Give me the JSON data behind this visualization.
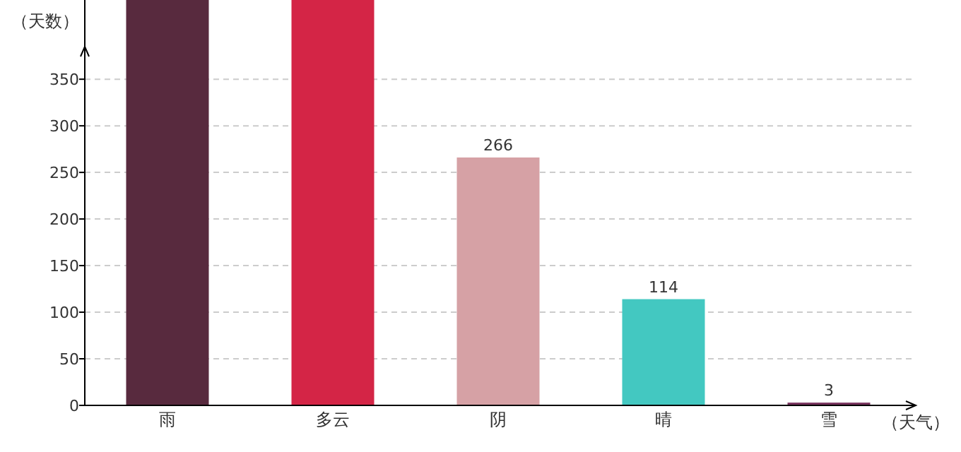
{
  "chart_data": {
    "type": "bar",
    "ylabel": "（天数）",
    "xlabel": "（天气）",
    "categories": [
      "雨",
      "多云",
      "阴",
      "晴",
      "雪"
    ],
    "values": [
      435,
      435,
      266,
      114,
      3
    ],
    "colors": [
      "#582a3e",
      "#d42546",
      "#d6a1a5",
      "#43c8c1",
      "#7a3660"
    ],
    "value_labels": [
      null,
      null,
      "266",
      "114",
      "3"
    ],
    "ylim": [
      0,
      435
    ],
    "yticks": [
      0,
      50,
      100,
      150,
      200,
      250,
      300,
      350
    ],
    "grid": "y"
  }
}
